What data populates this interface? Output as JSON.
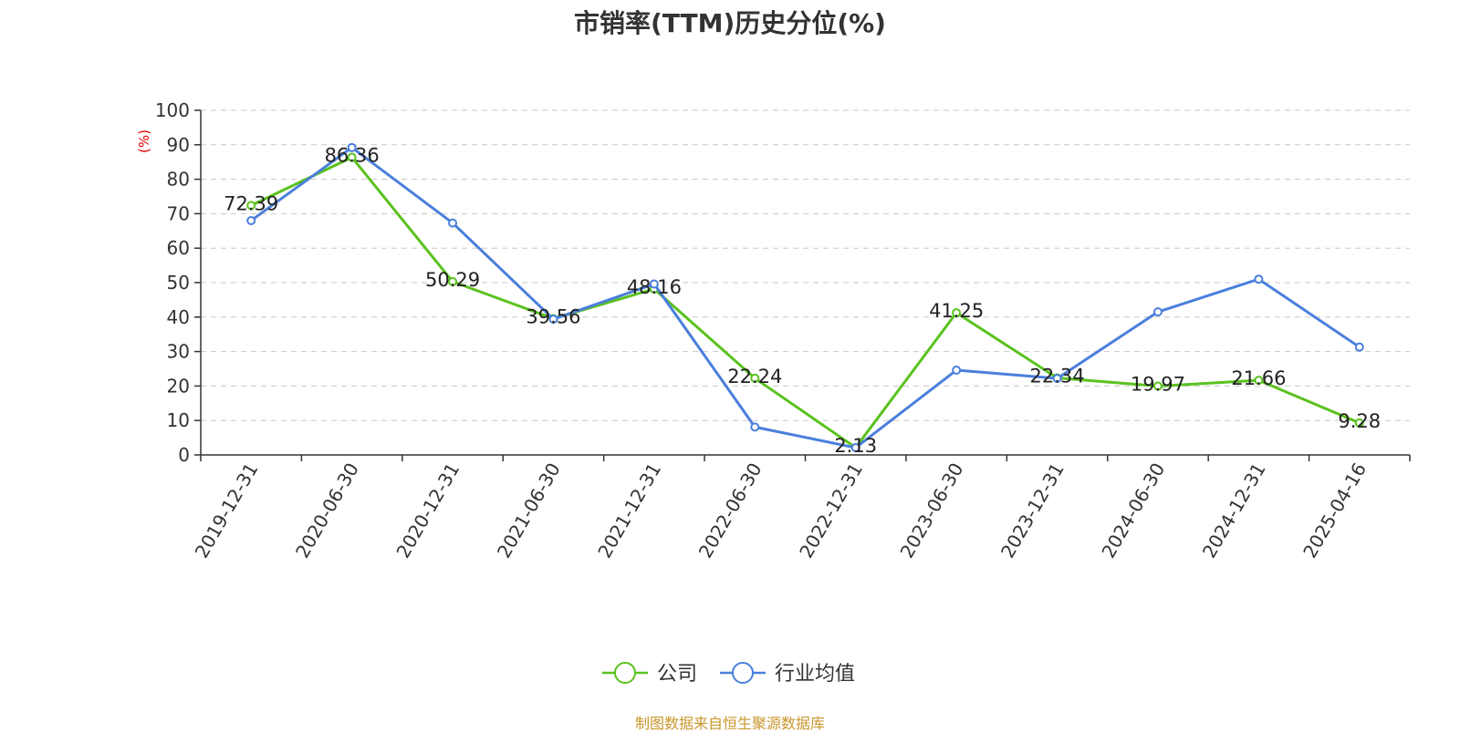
{
  "chart_data": {
    "type": "line",
    "title": "市销率(TTM)历史分位(%)",
    "ylabel": "(%)",
    "ylim": [
      0,
      100
    ],
    "yticks": [
      0,
      10,
      20,
      30,
      40,
      50,
      60,
      70,
      80,
      90,
      100
    ],
    "grid": true,
    "legend_position": "bottom-center",
    "categories": [
      "2019-12-31",
      "2020-06-30",
      "2020-12-31",
      "2021-06-30",
      "2021-12-31",
      "2022-06-30",
      "2022-12-31",
      "2023-06-30",
      "2023-12-31",
      "2024-06-30",
      "2024-12-31",
      "2025-04-16"
    ],
    "series": [
      {
        "name": "公司",
        "color": "#5ac21e",
        "values": [
          72.39,
          86.36,
          50.29,
          39.56,
          48.16,
          22.24,
          2.13,
          41.25,
          22.34,
          19.97,
          21.66,
          9.28
        ],
        "labels": [
          "72.39",
          "86.36",
          "50.29",
          "39.56",
          "48.16",
          "22.24",
          "2.13",
          "41.25",
          "22.34",
          "19.97",
          "21.66",
          "9.28"
        ]
      },
      {
        "name": "行业均值",
        "color": "#4a7fdc",
        "values": [
          68.0,
          89.2,
          67.3,
          39.4,
          49.6,
          8.1,
          2.1,
          24.6,
          22.2,
          41.5,
          51.0,
          31.3
        ]
      }
    ]
  },
  "source_note": "制图数据来自恒生聚源数据库"
}
